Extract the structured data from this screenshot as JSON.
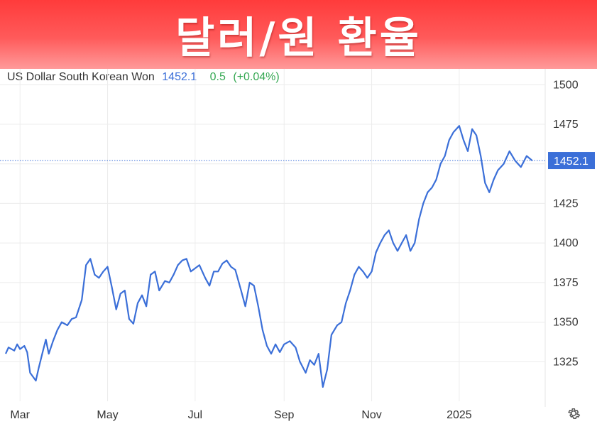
{
  "banner": {
    "title": "달러/원 환율"
  },
  "legend": {
    "name": "US Dollar South Korean Won",
    "price": "1452.1",
    "change": "0.5",
    "change_pct": "(+0.04%)"
  },
  "icons": {
    "settings": "gear-icon"
  },
  "colors": {
    "line": "#3b6fd8",
    "badge": "#3b6fd8",
    "banner": "#ff4a4a",
    "change": "#35a853"
  },
  "chart_data": {
    "type": "line",
    "title": "",
    "xlabel": "",
    "ylabel": "",
    "ylim": [
      1300,
      1510
    ],
    "x_range": [
      "2024-02-20",
      "2025-02-21"
    ],
    "y_ticks": [
      1325,
      1350,
      1375,
      1400,
      1425,
      1450,
      1475,
      1500
    ],
    "x_ticks": [
      {
        "label": "Mar",
        "date": "2024-03-01"
      },
      {
        "label": "May",
        "date": "2024-05-01"
      },
      {
        "label": "Jul",
        "date": "2024-07-01"
      },
      {
        "label": "Sep",
        "date": "2024-09-01"
      },
      {
        "label": "Nov",
        "date": "2024-11-01"
      },
      {
        "label": "2025",
        "date": "2025-01-01"
      }
    ],
    "last_value": 1452.1,
    "last_value_label": "1452.1",
    "grid": true,
    "series": [
      {
        "name": "US Dollar South Korean Won",
        "points": [
          [
            "2024-02-20",
            1330
          ],
          [
            "2024-02-22",
            1334
          ],
          [
            "2024-02-26",
            1332
          ],
          [
            "2024-02-28",
            1336
          ],
          [
            "2024-03-01",
            1333
          ],
          [
            "2024-03-04",
            1335
          ],
          [
            "2024-03-06",
            1331
          ],
          [
            "2024-03-08",
            1318
          ],
          [
            "2024-03-12",
            1313
          ],
          [
            "2024-03-14",
            1321
          ],
          [
            "2024-03-17",
            1332
          ],
          [
            "2024-03-19",
            1339
          ],
          [
            "2024-03-21",
            1330
          ],
          [
            "2024-03-24",
            1338
          ],
          [
            "2024-03-27",
            1345
          ],
          [
            "2024-03-30",
            1350
          ],
          [
            "2024-04-03",
            1348
          ],
          [
            "2024-04-06",
            1352
          ],
          [
            "2024-04-09",
            1353
          ],
          [
            "2024-04-13",
            1364
          ],
          [
            "2024-04-16",
            1386
          ],
          [
            "2024-04-19",
            1390
          ],
          [
            "2024-04-22",
            1380
          ],
          [
            "2024-04-25",
            1378
          ],
          [
            "2024-04-28",
            1382
          ],
          [
            "2024-05-01",
            1385
          ],
          [
            "2024-05-04",
            1372
          ],
          [
            "2024-05-07",
            1358
          ],
          [
            "2024-05-10",
            1368
          ],
          [
            "2024-05-13",
            1370
          ],
          [
            "2024-05-16",
            1352
          ],
          [
            "2024-05-19",
            1349
          ],
          [
            "2024-05-22",
            1362
          ],
          [
            "2024-05-25",
            1367
          ],
          [
            "2024-05-28",
            1360
          ],
          [
            "2024-05-31",
            1380
          ],
          [
            "2024-06-03",
            1382
          ],
          [
            "2024-06-06",
            1370
          ],
          [
            "2024-06-10",
            1376
          ],
          [
            "2024-06-13",
            1375
          ],
          [
            "2024-06-16",
            1380
          ],
          [
            "2024-06-19",
            1386
          ],
          [
            "2024-06-22",
            1389
          ],
          [
            "2024-06-25",
            1390
          ],
          [
            "2024-06-28",
            1382
          ],
          [
            "2024-07-01",
            1384
          ],
          [
            "2024-07-04",
            1386
          ],
          [
            "2024-07-08",
            1378
          ],
          [
            "2024-07-11",
            1373
          ],
          [
            "2024-07-14",
            1382
          ],
          [
            "2024-07-17",
            1382
          ],
          [
            "2024-07-20",
            1387
          ],
          [
            "2024-07-23",
            1389
          ],
          [
            "2024-07-26",
            1385
          ],
          [
            "2024-07-29",
            1383
          ],
          [
            "2024-08-02",
            1370
          ],
          [
            "2024-08-05",
            1360
          ],
          [
            "2024-08-08",
            1375
          ],
          [
            "2024-08-11",
            1373
          ],
          [
            "2024-08-14",
            1360
          ],
          [
            "2024-08-17",
            1345
          ],
          [
            "2024-08-20",
            1335
          ],
          [
            "2024-08-23",
            1330
          ],
          [
            "2024-08-26",
            1336
          ],
          [
            "2024-08-29",
            1331
          ],
          [
            "2024-09-01",
            1336
          ],
          [
            "2024-09-05",
            1338
          ],
          [
            "2024-09-09",
            1334
          ],
          [
            "2024-09-12",
            1325
          ],
          [
            "2024-09-16",
            1318
          ],
          [
            "2024-09-19",
            1326
          ],
          [
            "2024-09-22",
            1323
          ],
          [
            "2024-09-25",
            1330
          ],
          [
            "2024-09-28",
            1309
          ],
          [
            "2024-10-01",
            1320
          ],
          [
            "2024-10-04",
            1342
          ],
          [
            "2024-10-08",
            1348
          ],
          [
            "2024-10-11",
            1350
          ],
          [
            "2024-10-14",
            1362
          ],
          [
            "2024-10-17",
            1370
          ],
          [
            "2024-10-20",
            1380
          ],
          [
            "2024-10-23",
            1385
          ],
          [
            "2024-10-26",
            1382
          ],
          [
            "2024-10-29",
            1378
          ],
          [
            "2024-11-01",
            1382
          ],
          [
            "2024-11-04",
            1394
          ],
          [
            "2024-11-07",
            1400
          ],
          [
            "2024-11-10",
            1405
          ],
          [
            "2024-11-13",
            1408
          ],
          [
            "2024-11-16",
            1400
          ],
          [
            "2024-11-19",
            1395
          ],
          [
            "2024-11-22",
            1400
          ],
          [
            "2024-11-25",
            1405
          ],
          [
            "2024-11-28",
            1395
          ],
          [
            "2024-12-01",
            1400
          ],
          [
            "2024-12-04",
            1415
          ],
          [
            "2024-12-07",
            1425
          ],
          [
            "2024-12-10",
            1432
          ],
          [
            "2024-12-13",
            1435
          ],
          [
            "2024-12-16",
            1440
          ],
          [
            "2024-12-19",
            1450
          ],
          [
            "2024-12-22",
            1455
          ],
          [
            "2024-12-25",
            1465
          ],
          [
            "2024-12-28",
            1470
          ],
          [
            "2025-01-01",
            1474
          ],
          [
            "2025-01-04",
            1465
          ],
          [
            "2025-01-07",
            1458
          ],
          [
            "2025-01-10",
            1472
          ],
          [
            "2025-01-13",
            1468
          ],
          [
            "2025-01-16",
            1455
          ],
          [
            "2025-01-19",
            1438
          ],
          [
            "2025-01-22",
            1432
          ],
          [
            "2025-01-25",
            1440
          ],
          [
            "2025-01-28",
            1446
          ],
          [
            "2025-02-01",
            1450
          ],
          [
            "2025-02-05",
            1458
          ],
          [
            "2025-02-09",
            1452
          ],
          [
            "2025-02-13",
            1448
          ],
          [
            "2025-02-17",
            1455
          ],
          [
            "2025-02-21",
            1452
          ]
        ]
      }
    ]
  }
}
